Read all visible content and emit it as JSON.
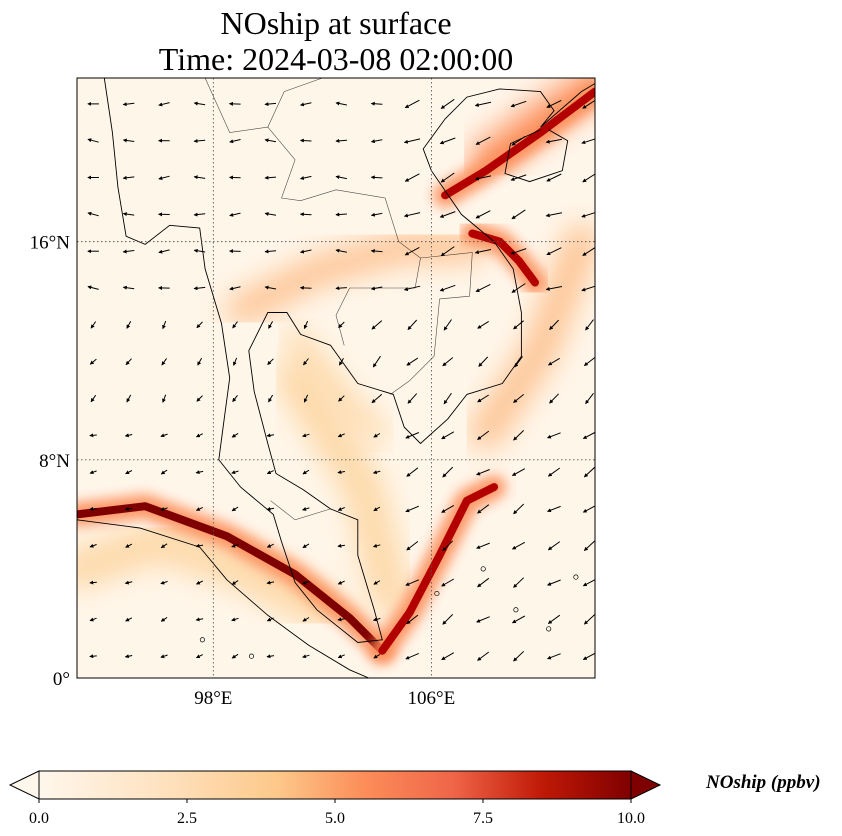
{
  "chart_data": {
    "type": "heatmap",
    "title": "NOship at surface",
    "subtitle": "Time: 2024-03-08 02:00:00",
    "variable": "NOship",
    "units": "ppbv",
    "colorbar_label": "NOship (ppbv)",
    "colorbar_ticks": [
      "0.0",
      "2.5",
      "5.0",
      "7.5",
      "10.0"
    ],
    "colorbar_range": [
      0.0,
      10.0
    ],
    "colorbar_extend": "both",
    "colormap": "OrRd",
    "lon_range": [
      93,
      112
    ],
    "lat_range": [
      0,
      22
    ],
    "xticks": [
      {
        "value": 98,
        "label": "98°E"
      },
      {
        "value": 106,
        "label": "106°E"
      }
    ],
    "yticks": [
      {
        "value": 0,
        "label": "0°"
      },
      {
        "value": 8,
        "label": "8°N"
      },
      {
        "value": 16,
        "label": "16°N"
      }
    ],
    "gridlines": "dotted",
    "features": [
      "coastlines",
      "country borders",
      "wind vectors"
    ],
    "high_concentration_tracks": [
      {
        "name": "Strait of Malacca shipping lane",
        "points": [
          [
            93,
            6
          ],
          [
            95.5,
            6.3
          ],
          [
            98.5,
            5.2
          ],
          [
            101,
            3.8
          ],
          [
            103,
            2.2
          ],
          [
            104.2,
            1.0
          ]
        ],
        "value": 10.0
      },
      {
        "name": "Singapore to South China Sea lane",
        "points": [
          [
            104.2,
            1.0
          ],
          [
            105.2,
            2.4
          ],
          [
            106.3,
            4.5
          ],
          [
            107.3,
            6.5
          ],
          [
            108.3,
            7.0
          ]
        ],
        "value": 9.0
      },
      {
        "name": "Vietnam central coast lane",
        "points": [
          [
            107.5,
            16.3
          ],
          [
            108.5,
            16
          ],
          [
            109.2,
            15.3
          ],
          [
            109.8,
            14.5
          ]
        ],
        "value": 9.0
      },
      {
        "name": "Gulf of Tonkin lane",
        "points": [
          [
            106.5,
            17.7
          ],
          [
            108,
            18.6
          ],
          [
            110,
            20
          ],
          [
            112,
            21.5
          ]
        ],
        "value": 9.0
      }
    ]
  }
}
